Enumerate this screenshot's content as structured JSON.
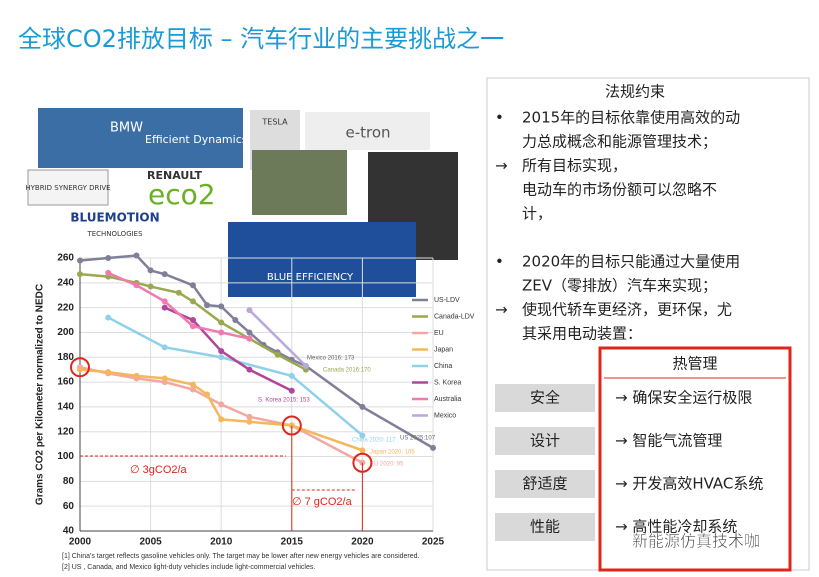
{
  "title": "全球CO2排放目标 – 汽车行业的主要挑战之一",
  "logos": [
    "BMW",
    "Efficient Dynamics",
    "TESLA",
    "e-tron",
    "HYBRID SYNERGY DRIVE",
    "RENAULT",
    "eco2",
    "BLUEMOTION",
    "TECHNOLOGIES",
    "BLUE EFFICIENCY"
  ],
  "chart_data": {
    "type": "line",
    "y_label": "Grams CO2 per Kilometer normalized to NEDC",
    "xlim": [
      2000,
      2025
    ],
    "xticks": [
      2000,
      2005,
      2010,
      2015,
      2020,
      2025
    ],
    "ylim": [
      40,
      260
    ],
    "yticks": [
      40,
      60,
      80,
      100,
      120,
      140,
      160,
      180,
      200,
      220,
      240,
      260
    ],
    "grid": true,
    "series": [
      {
        "name": "US-LDV",
        "color": "#7f7f9a",
        "x": [
          2000,
          2002,
          2004,
          2005,
          2006,
          2008,
          2009,
          2010,
          2011,
          2012,
          2013,
          2014,
          2015,
          2016,
          2020,
          2025
        ],
        "values": [
          258,
          260,
          262,
          250,
          247,
          238,
          222,
          221,
          210,
          200,
          190,
          184,
          178,
          173,
          140,
          107
        ]
      },
      {
        "name": "Canada-LDV",
        "color": "#9aa84f",
        "x": [
          2000,
          2002,
          2004,
          2005,
          2007,
          2008,
          2010,
          2012,
          2014,
          2016
        ],
        "values": [
          247,
          245,
          240,
          237,
          232,
          225,
          208,
          195,
          182,
          170
        ]
      },
      {
        "name": "EU",
        "color": "#f2a7a0",
        "x": [
          2000,
          2002,
          2004,
          2006,
          2008,
          2010,
          2012,
          2015,
          2020
        ],
        "values": [
          172,
          167,
          163,
          160,
          154,
          142,
          132,
          125,
          95
        ]
      },
      {
        "name": "Japan",
        "color": "#f5b65c",
        "x": [
          2000,
          2002,
          2004,
          2006,
          2008,
          2009,
          2010,
          2012,
          2015,
          2020
        ],
        "values": [
          170,
          168,
          165,
          163,
          158,
          150,
          130,
          128,
          125,
          105
        ]
      },
      {
        "name": "China",
        "color": "#8fd0ea",
        "x": [
          2002,
          2006,
          2010,
          2015,
          2020
        ],
        "values": [
          212,
          188,
          180,
          165,
          117
        ]
      },
      {
        "name": "S. Korea",
        "color": "#b0469a",
        "x": [
          2006,
          2008,
          2010,
          2012,
          2015
        ],
        "values": [
          220,
          210,
          185,
          170,
          153
        ]
      },
      {
        "name": "Australia",
        "color": "#f07ab0",
        "x": [
          2002,
          2004,
          2006,
          2008,
          2010,
          2012
        ],
        "values": [
          248,
          238,
          225,
          205,
          200,
          195
        ]
      },
      {
        "name": "Mexico",
        "color": "#b9a8dc",
        "x": [
          2012,
          2016
        ],
        "values": [
          218,
          173
        ]
      }
    ],
    "annotations": [
      "Mexico 2016: 173",
      "Canada 2016:170",
      "S. Korea 2015: 153",
      "China 2020: 117",
      "Japan 2020: 105",
      "EU 2020: 95",
      "US 2025:107",
      "∅ 3gCO2/a",
      "∅ 7 gCO2/a"
    ],
    "footnotes": [
      "[1] China's target reflects gasoline vehicles only. The target may be lower after new energy vehicles are considered.",
      "[2] US , Canada, and Mexico light-duty vehicles include light-commercial vehicles."
    ]
  },
  "panel": {
    "heading": "法规约束",
    "bullets": [
      [
        "2015年的目标依靠使用高效的动",
        "力总成概念和能源管理技术；"
      ],
      [
        "所有目标实现，",
        "电动车的市场份额可以忽略不",
        "计，"
      ],
      [
        "2020年的目标只能通过大量使用",
        "ZEV（零排放）汽车来实现；"
      ],
      [
        "使现代轿车更经济，更环保，尤",
        "其采用电动装置："
      ]
    ],
    "table": {
      "header": "热管理",
      "rows": [
        [
          "安全",
          "→ 确保安全运行极限"
        ],
        [
          "设计",
          "→ 智能气流管理"
        ],
        [
          "舒适度",
          "→ 开发高效HVAC系统"
        ],
        [
          "性能",
          "→ 高性能冷却系统"
        ]
      ]
    },
    "watermark": "新能源仿真技术咖"
  }
}
